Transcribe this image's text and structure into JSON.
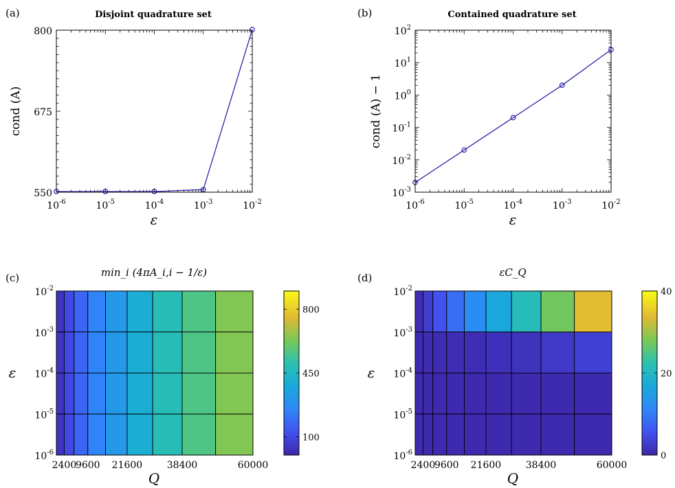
{
  "chart_data": [
    {
      "panel": "(a)",
      "type": "line",
      "title": "Disjoint quadrature set",
      "xlabel": "ε",
      "ylabel": "cond (A)",
      "xscale": "log",
      "xlim": [
        1e-06,
        0.01
      ],
      "ylim": [
        550,
        800
      ],
      "x_tick_labels": [
        "10^-6",
        "10^-5",
        "10^-4",
        "10^-3",
        "10^-2"
      ],
      "y_tick_labels": [
        "550",
        "675",
        "800"
      ],
      "marker": "circle",
      "color": "#2B22A8",
      "series": [
        {
          "x": [
            1e-06,
            1e-05,
            0.0001,
            0.001,
            0.01
          ],
          "values": [
            551,
            551,
            551,
            554,
            801
          ]
        }
      ]
    },
    {
      "panel": "(b)",
      "type": "line",
      "title": "Contained quadrature set",
      "xlabel": "ε",
      "ylabel": "cond (A) − 1",
      "xscale": "log",
      "yscale": "log",
      "xlim": [
        1e-06,
        0.01
      ],
      "ylim": [
        0.001,
        100
      ],
      "x_tick_labels": [
        "10^-6",
        "10^-5",
        "10^-4",
        "10^-3",
        "10^-2"
      ],
      "y_tick_labels": [
        "10^-3",
        "10^-2",
        "10^-1",
        "10^0",
        "10^1",
        "10^2"
      ],
      "marker": "circle",
      "color": "#2B22A8",
      "series": [
        {
          "x": [
            1e-06,
            1e-05,
            0.0001,
            0.001,
            0.01
          ],
          "values": [
            0.002,
            0.02,
            0.2,
            2,
            25
          ]
        }
      ]
    },
    {
      "panel": "(c)",
      "type": "heatmap",
      "title": "min_i (4πA_i,i − 1/ε)",
      "xlabel": "Q",
      "ylabel": "ε",
      "x_edges": [
        0,
        2400,
        5400,
        9600,
        15000,
        21600,
        29400,
        38400,
        48600,
        60000
      ],
      "x_tick_labels": [
        "2400",
        "9600",
        "21600",
        "38400",
        "60000"
      ],
      "x_tick_values": [
        2400,
        9600,
        21600,
        38400,
        60000
      ],
      "y_rows": [
        "10^-2",
        "10^-3",
        "10^-4",
        "10^-5"
      ],
      "y_tick_labels": [
        "10^-2",
        "10^-3",
        "10^-4",
        "10^-5",
        "10^-6"
      ],
      "colorbar": {
        "min": 0,
        "max": 900,
        "ticks": [
          100,
          450,
          800
        ]
      },
      "values": [
        [
          40,
          100,
          170,
          245,
          320,
          400,
          480,
          560,
          640
        ],
        [
          40,
          100,
          170,
          245,
          320,
          400,
          480,
          560,
          640
        ],
        [
          40,
          100,
          170,
          245,
          320,
          400,
          480,
          560,
          640
        ],
        [
          40,
          100,
          170,
          245,
          320,
          400,
          480,
          560,
          640
        ]
      ]
    },
    {
      "panel": "(d)",
      "type": "heatmap",
      "title": "εC_Q",
      "xlabel": "Q",
      "ylabel": "ε",
      "x_edges": [
        0,
        2400,
        5400,
        9600,
        15000,
        21600,
        29400,
        38400,
        48600,
        60000
      ],
      "x_tick_labels": [
        "2400",
        "9600",
        "21600",
        "38400",
        "60000"
      ],
      "x_tick_values": [
        2400,
        9600,
        21600,
        38400,
        60000
      ],
      "y_rows": [
        "10^-2",
        "10^-3",
        "10^-4",
        "10^-5"
      ],
      "y_tick_labels": [
        "10^-2",
        "10^-3",
        "10^-4",
        "10^-5",
        "10^-6"
      ],
      "colorbar": {
        "min": 0,
        "max": 40,
        "ticks": [
          0,
          20,
          40
        ]
      },
      "values": [
        [
          1,
          3,
          5.5,
          8.5,
          12,
          16.5,
          21,
          27.5,
          34
        ],
        [
          0.6,
          0.7,
          0.8,
          0.9,
          1.0,
          1.3,
          1.6,
          2.4,
          3.4
        ],
        [
          0.5,
          0.5,
          0.5,
          0.5,
          0.5,
          0.5,
          0.5,
          0.5,
          0.5
        ],
        [
          0.5,
          0.5,
          0.5,
          0.5,
          0.5,
          0.5,
          0.5,
          0.5,
          0.5
        ]
      ]
    }
  ]
}
